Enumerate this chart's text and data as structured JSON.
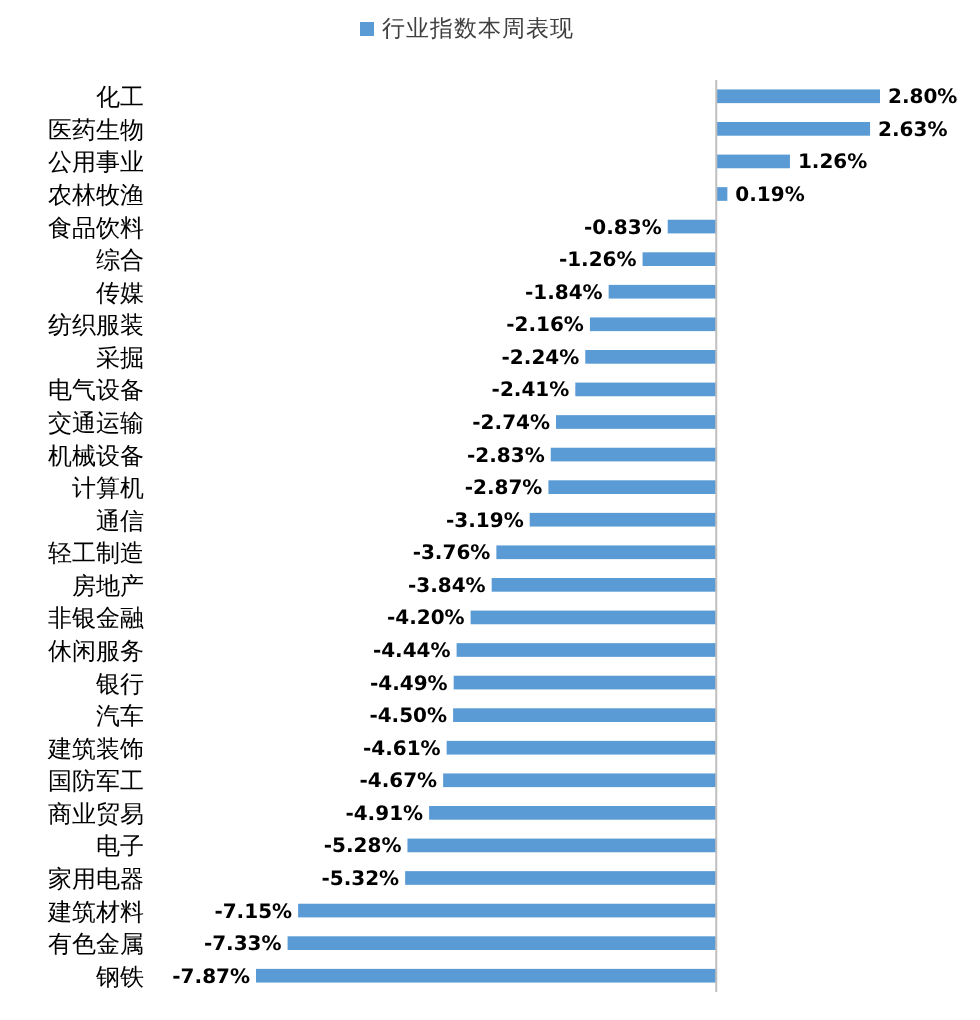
{
  "chart_data": {
    "type": "bar",
    "orientation": "horizontal",
    "legend": "top",
    "categories": [
      "化工",
      "医药生物",
      "公用事业",
      "农林牧渔",
      "食品饮料",
      "综合",
      "传媒",
      "纺织服装",
      "采掘",
      "电气设备",
      "交通运输",
      "机械设备",
      "计算机",
      "通信",
      "轻工制造",
      "房地产",
      "非银金融",
      "休闲服务",
      "银行",
      "汽车",
      "建筑装饰",
      "国防军工",
      "商业贸易",
      "电子",
      "家用电器",
      "建筑材料",
      "有色金属",
      "钢铁"
    ],
    "series": [
      {
        "name": "行业指数本周表现",
        "color": "#5b9bd5",
        "values": [
          2.8,
          2.63,
          1.26,
          0.19,
          -0.83,
          -1.26,
          -1.84,
          -2.16,
          -2.24,
          -2.41,
          -2.74,
          -2.83,
          -2.87,
          -3.19,
          -3.76,
          -3.84,
          -4.2,
          -4.44,
          -4.49,
          -4.5,
          -4.61,
          -4.67,
          -4.91,
          -5.28,
          -5.32,
          -7.15,
          -7.33,
          -7.87
        ],
        "value_labels": [
          "2.80%",
          "2.63%",
          "1.26%",
          "0.19%",
          "-0.83%",
          "-1.26%",
          "-1.84%",
          "-2.16%",
          "-2.24%",
          "-2.41%",
          "-2.74%",
          "-2.83%",
          "-2.87%",
          "-3.19%",
          "-3.76%",
          "-3.84%",
          "-4.20%",
          "-4.44%",
          "-4.49%",
          "-4.50%",
          "-4.61%",
          "-4.67%",
          "-4.91%",
          "-5.28%",
          "-5.32%",
          "-7.15%",
          "-7.33%",
          "-7.87%"
        ]
      }
    ]
  }
}
